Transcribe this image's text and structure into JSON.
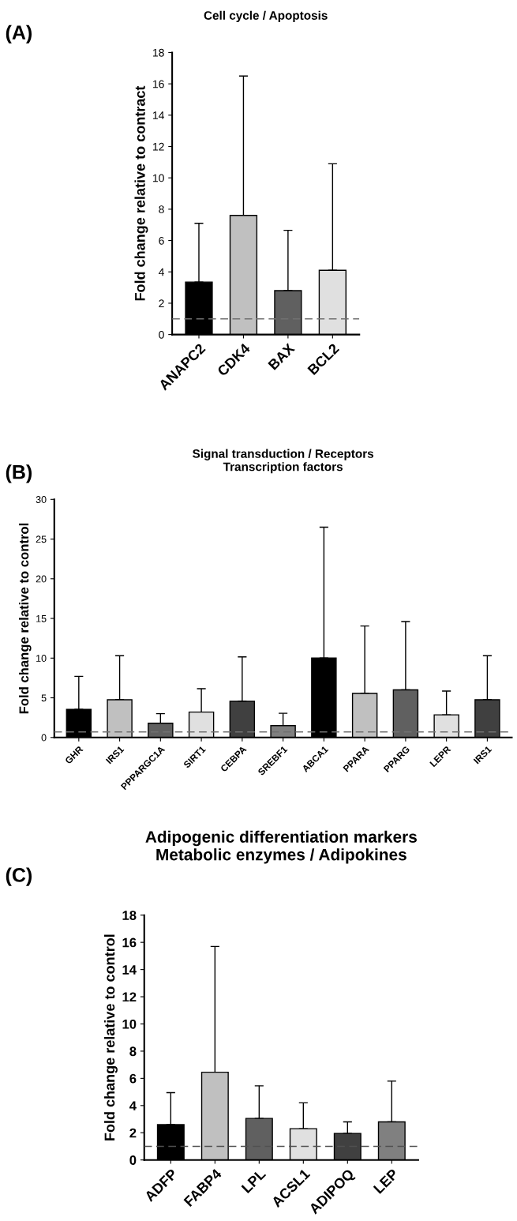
{
  "chart_data": [
    {
      "type": "bar",
      "title": "Cell cycle / Apoptosis",
      "ylabel": "Fold change relative to contract",
      "annotations": [
        "(A)"
      ],
      "categories": [
        "ANAPC2",
        "CDK4",
        "BAX",
        "BCL2"
      ],
      "values": [
        3.35,
        7.6,
        2.8,
        4.1
      ],
      "errors": [
        [
          3.35,
          7.1
        ],
        [
          7.6,
          16.5
        ],
        [
          2.8,
          6.65
        ],
        [
          4.1,
          10.9
        ]
      ],
      "colors": [
        "#000000",
        "#c0c0c0",
        "#606060",
        "#e0e0e0"
      ],
      "ylim": [
        0,
        18
      ],
      "yticks": [
        0,
        2,
        4,
        6,
        8,
        10,
        12,
        14,
        16,
        18
      ],
      "ref_lines": [
        {
          "axis": "y",
          "value": 1.0,
          "label": null,
          "color": "#707070",
          "line_style": "dashed"
        }
      ]
    },
    {
      "type": "bar",
      "title": "Signal transduction / Receptors\nTranscription factors",
      "ylabel": "Fold change relative to control",
      "annotations": [
        "(B)"
      ],
      "categories": [
        "GHR",
        "IRS1",
        "PPPARGC1A",
        "SIRT1",
        "CEBPA",
        "SREBF1",
        "ABCA1",
        "PPARA",
        "PPARG",
        "LEPR",
        "IRS1"
      ],
      "values": [
        3.55,
        4.75,
        1.8,
        3.2,
        4.55,
        1.5,
        10.0,
        5.55,
        6.0,
        2.85,
        4.75
      ],
      "errors": [
        [
          3.55,
          7.7
        ],
        [
          4.75,
          10.3
        ],
        [
          1.8,
          3.0
        ],
        [
          3.2,
          6.15
        ],
        [
          4.55,
          10.15
        ],
        [
          1.5,
          3.05
        ],
        [
          10.0,
          26.5
        ],
        [
          5.55,
          14.05
        ],
        [
          6.0,
          14.6
        ],
        [
          2.85,
          5.85
        ],
        [
          4.75,
          10.3
        ]
      ],
      "colors": [
        "#000000",
        "#c0c0c0",
        "#606060",
        "#e0e0e0",
        "#404040",
        "#808080",
        "#000000",
        "#c0c0c0",
        "#606060",
        "#e0e0e0",
        "#404040"
      ],
      "ylim": [
        0,
        30
      ],
      "yticks": [
        0,
        5,
        10,
        15,
        20,
        25,
        30
      ],
      "ref_lines": [
        {
          "axis": "y",
          "value": 0.7,
          "label": null,
          "color": "#707070",
          "line_style": "dashed"
        }
      ]
    },
    {
      "type": "bar",
      "title": "Adipogenic differentiation markers\nMetabolic enzymes / Adipokines",
      "ylabel": "Fold change relative to control",
      "annotations": [
        "(C)"
      ],
      "categories": [
        "ADFP",
        "FABP4",
        "LPL",
        "ACSL1",
        "ADIPOQ",
        "LEP"
      ],
      "values": [
        2.6,
        6.45,
        3.05,
        2.3,
        1.95,
        2.8
      ],
      "errors": [
        [
          2.6,
          4.95
        ],
        [
          6.45,
          15.7
        ],
        [
          3.05,
          5.45
        ],
        [
          2.3,
          4.2
        ],
        [
          1.95,
          2.8
        ],
        [
          2.8,
          5.8
        ]
      ],
      "colors": [
        "#000000",
        "#c0c0c0",
        "#606060",
        "#e0e0e0",
        "#404040",
        "#808080"
      ],
      "ylim": [
        0,
        18
      ],
      "yticks": [
        0,
        2,
        4,
        6,
        8,
        10,
        12,
        14,
        16,
        18
      ],
      "ref_lines": [
        {
          "axis": "y",
          "value": 1.0,
          "label": null,
          "color": "#505050",
          "line_style": "dashed"
        }
      ]
    }
  ]
}
